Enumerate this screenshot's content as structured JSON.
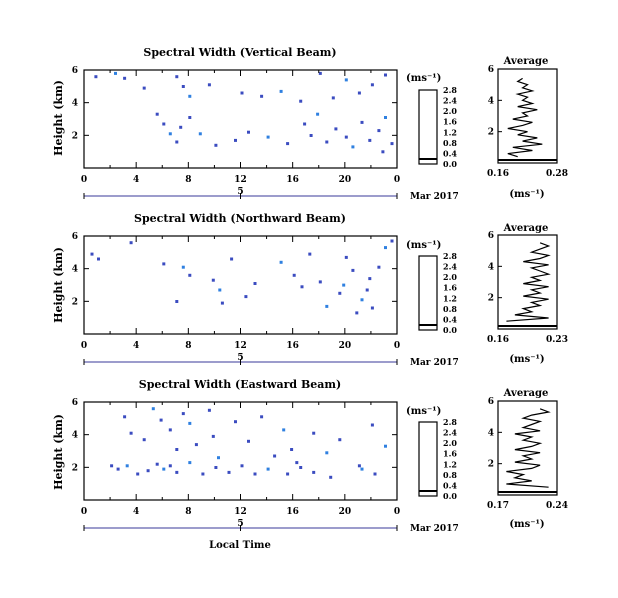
{
  "chart_data": [
    {
      "type": "heatmap",
      "title": "Spectral Width (Vertical Beam)",
      "ylabel": "Height (km)",
      "yticks": [
        "2",
        "4",
        "6"
      ],
      "xticks": [
        "0",
        "4",
        "8",
        "12",
        "16",
        "20",
        "0"
      ],
      "date_mid": "5",
      "date_label": "Mar 2017",
      "colorbar": {
        "unit": "(ms⁻¹)",
        "ticks": [
          "0.0",
          "0.4",
          "0.8",
          "1.2",
          "1.6",
          "2.0",
          "2.4",
          "2.8"
        ]
      },
      "avg": {
        "title": "Average",
        "xticks": [
          "0.16",
          "0.28"
        ],
        "xlabel": "(ms⁻¹)",
        "yticks": [
          "2",
          "4",
          "6"
        ]
      },
      "cells": [
        [
          0.8,
          5.5,
          0.3
        ],
        [
          2.3,
          5.7,
          0.6
        ],
        [
          3.0,
          5.4,
          0.4
        ],
        [
          4.5,
          4.8,
          0.3
        ],
        [
          7.0,
          5.5,
          0.5
        ],
        [
          7.5,
          4.9,
          0.4
        ],
        [
          8.0,
          4.3,
          0.6
        ],
        [
          9.5,
          5.0,
          0.3
        ],
        [
          12.0,
          4.5,
          0.5
        ],
        [
          13.5,
          4.3,
          0.4
        ],
        [
          15.0,
          4.6,
          0.6
        ],
        [
          16.5,
          4.0,
          0.3
        ],
        [
          18.0,
          5.7,
          0.5
        ],
        [
          19.0,
          4.2,
          0.4
        ],
        [
          20.0,
          5.3,
          0.6
        ],
        [
          21.0,
          4.5,
          0.3
        ],
        [
          22.0,
          5.0,
          0.5
        ],
        [
          23.0,
          5.6,
          0.4
        ],
        [
          5.5,
          3.2,
          0.4
        ],
        [
          6.0,
          2.6,
          0.5
        ],
        [
          6.5,
          2.0,
          0.6
        ],
        [
          7.0,
          1.5,
          0.3
        ],
        [
          7.3,
          2.4,
          0.5
        ],
        [
          8.0,
          3.0,
          0.4
        ],
        [
          8.8,
          2.0,
          0.6
        ],
        [
          10.0,
          1.3,
          0.3
        ],
        [
          11.5,
          1.6,
          0.4
        ],
        [
          12.5,
          2.1,
          0.5
        ],
        [
          14.0,
          1.8,
          0.6
        ],
        [
          15.5,
          1.4,
          0.3
        ],
        [
          16.8,
          2.6,
          0.5
        ],
        [
          17.3,
          1.9,
          0.4
        ],
        [
          17.8,
          3.2,
          0.6
        ],
        [
          18.5,
          1.5,
          0.3
        ],
        [
          19.2,
          2.3,
          0.5
        ],
        [
          20.0,
          1.8,
          0.4
        ],
        [
          20.5,
          1.2,
          0.6
        ],
        [
          21.2,
          2.7,
          0.3
        ],
        [
          21.8,
          1.6,
          0.5
        ],
        [
          22.5,
          2.2,
          0.4
        ],
        [
          23.0,
          3.0,
          0.6
        ],
        [
          23.5,
          1.4,
          0.3
        ],
        [
          22.8,
          0.9,
          0.5
        ]
      ],
      "avg_profile": [
        [
          0.2,
          0.4
        ],
        [
          0.18,
          0.6
        ],
        [
          0.23,
          0.8
        ],
        [
          0.19,
          1.0
        ],
        [
          0.25,
          1.2
        ],
        [
          0.21,
          1.4
        ],
        [
          0.24,
          1.6
        ],
        [
          0.2,
          1.8
        ],
        [
          0.22,
          2.0
        ],
        [
          0.18,
          2.2
        ],
        [
          0.21,
          2.4
        ],
        [
          0.23,
          2.6
        ],
        [
          0.19,
          2.8
        ],
        [
          0.22,
          3.0
        ],
        [
          0.21,
          3.2
        ],
        [
          0.24,
          3.4
        ],
        [
          0.2,
          3.6
        ],
        [
          0.23,
          3.8
        ],
        [
          0.21,
          4.0
        ],
        [
          0.22,
          4.2
        ],
        [
          0.2,
          4.4
        ],
        [
          0.23,
          4.6
        ],
        [
          0.21,
          4.8
        ],
        [
          0.22,
          5.0
        ],
        [
          0.2,
          5.2
        ],
        [
          0.21,
          5.4
        ]
      ]
    },
    {
      "type": "heatmap",
      "title": "Spectral Width (Northward Beam)",
      "ylabel": "Height (km)",
      "yticks": [
        "2",
        "4",
        "6"
      ],
      "xticks": [
        "0",
        "4",
        "8",
        "12",
        "16",
        "20",
        "0"
      ],
      "date_mid": "5",
      "date_label": "Mar 2017",
      "colorbar": {
        "unit": "(ms⁻¹)",
        "ticks": [
          "0.0",
          "0.4",
          "0.8",
          "1.2",
          "1.6",
          "2.0",
          "2.4",
          "2.8"
        ]
      },
      "avg": {
        "title": "Average",
        "xticks": [
          "0.16",
          "0.23"
        ],
        "xlabel": "(ms⁻¹)",
        "yticks": [
          "2",
          "4",
          "6"
        ]
      },
      "cells": [
        [
          0.5,
          4.8,
          0.3
        ],
        [
          1.0,
          4.5,
          0.5
        ],
        [
          3.5,
          5.5,
          0.4
        ],
        [
          6.0,
          4.2,
          0.3
        ],
        [
          7.5,
          4.0,
          0.6
        ],
        [
          8.0,
          3.5,
          0.4
        ],
        [
          9.8,
          3.2,
          0.5
        ],
        [
          10.3,
          2.6,
          0.6
        ],
        [
          10.5,
          1.8,
          0.3
        ],
        [
          11.2,
          4.5,
          0.4
        ],
        [
          13.0,
          3.0,
          0.5
        ],
        [
          15.0,
          4.3,
          0.6
        ],
        [
          16.0,
          3.5,
          0.3
        ],
        [
          17.2,
          4.8,
          0.5
        ],
        [
          18.0,
          3.1,
          0.4
        ],
        [
          18.5,
          1.6,
          0.6
        ],
        [
          19.5,
          2.4,
          0.3
        ],
        [
          20.0,
          4.6,
          0.5
        ],
        [
          20.5,
          3.8,
          0.4
        ],
        [
          21.2,
          2.0,
          0.6
        ],
        [
          21.8,
          3.3,
          0.3
        ],
        [
          22.5,
          4.0,
          0.5
        ],
        [
          23.0,
          5.2,
          0.6
        ],
        [
          23.5,
          5.6,
          0.4
        ],
        [
          20.8,
          1.2,
          0.5
        ],
        [
          22.0,
          1.5,
          0.3
        ],
        [
          7.0,
          1.9,
          0.4
        ],
        [
          12.3,
          2.2,
          0.3
        ],
        [
          16.6,
          2.8,
          0.5
        ],
        [
          19.8,
          2.9,
          0.6
        ],
        [
          21.6,
          2.6,
          0.4
        ]
      ],
      "avg_profile": [
        [
          0.17,
          0.5
        ],
        [
          0.22,
          0.7
        ],
        [
          0.18,
          0.9
        ],
        [
          0.2,
          1.1
        ],
        [
          0.19,
          1.3
        ],
        [
          0.21,
          1.5
        ],
        [
          0.2,
          1.7
        ],
        [
          0.22,
          1.9
        ],
        [
          0.19,
          2.1
        ],
        [
          0.21,
          2.3
        ],
        [
          0.2,
          2.5
        ],
        [
          0.22,
          2.7
        ],
        [
          0.19,
          2.9
        ],
        [
          0.21,
          3.1
        ],
        [
          0.2,
          3.3
        ],
        [
          0.22,
          3.5
        ],
        [
          0.21,
          3.7
        ],
        [
          0.2,
          3.9
        ],
        [
          0.22,
          4.1
        ],
        [
          0.19,
          4.3
        ],
        [
          0.21,
          4.5
        ],
        [
          0.22,
          4.7
        ],
        [
          0.2,
          4.9
        ],
        [
          0.21,
          5.1
        ],
        [
          0.22,
          5.3
        ],
        [
          0.21,
          5.5
        ]
      ]
    },
    {
      "type": "heatmap",
      "title": "Spectral Width (Eastward Beam)",
      "ylabel": "Height (km)",
      "yticks": [
        "2",
        "4",
        "6"
      ],
      "xticks": [
        "0",
        "4",
        "8",
        "12",
        "16",
        "20",
        "0"
      ],
      "date_mid": "5",
      "date_label": "Mar 2017",
      "xlabel": "Local Time",
      "colorbar": {
        "unit": "(ms⁻¹)",
        "ticks": [
          "0.0",
          "0.4",
          "0.8",
          "1.2",
          "1.6",
          "2.0",
          "2.4",
          "2.8"
        ]
      },
      "avg": {
        "title": "Average",
        "xticks": [
          "0.17",
          "0.24"
        ],
        "xlabel": "(ms⁻¹)",
        "yticks": [
          "2",
          "4",
          "6"
        ]
      },
      "cells": [
        [
          3.0,
          5.0,
          0.4
        ],
        [
          3.5,
          4.0,
          0.3
        ],
        [
          4.5,
          3.6,
          0.5
        ],
        [
          5.2,
          5.5,
          0.6
        ],
        [
          5.8,
          4.8,
          0.4
        ],
        [
          6.5,
          4.2,
          0.3
        ],
        [
          7.0,
          3.0,
          0.5
        ],
        [
          7.5,
          5.2,
          0.4
        ],
        [
          8.0,
          4.6,
          0.6
        ],
        [
          8.5,
          3.3,
          0.3
        ],
        [
          9.5,
          5.4,
          0.5
        ],
        [
          9.8,
          3.8,
          0.4
        ],
        [
          10.2,
          2.5,
          0.6
        ],
        [
          11.5,
          4.7,
          0.3
        ],
        [
          12.5,
          3.5,
          0.5
        ],
        [
          13.5,
          5.0,
          0.4
        ],
        [
          14.5,
          2.6,
          0.3
        ],
        [
          15.2,
          4.2,
          0.6
        ],
        [
          15.8,
          3.0,
          0.4
        ],
        [
          16.2,
          2.2,
          0.5
        ],
        [
          17.5,
          4.0,
          0.3
        ],
        [
          18.5,
          2.8,
          0.6
        ],
        [
          19.5,
          3.6,
          0.4
        ],
        [
          21.0,
          2.0,
          0.5
        ],
        [
          22.0,
          4.5,
          0.3
        ],
        [
          23.0,
          3.2,
          0.6
        ],
        [
          2.0,
          2.0,
          0.5
        ],
        [
          2.5,
          1.8,
          0.4
        ],
        [
          3.2,
          2.0,
          0.6
        ],
        [
          4.0,
          1.5,
          0.3
        ],
        [
          4.8,
          1.7,
          0.5
        ],
        [
          5.5,
          2.1,
          0.4
        ],
        [
          6.0,
          1.8,
          0.6
        ],
        [
          6.5,
          2.0,
          0.5
        ],
        [
          7.0,
          1.6,
          0.4
        ],
        [
          8.0,
          2.2,
          0.6
        ],
        [
          9.0,
          1.5,
          0.3
        ],
        [
          10.0,
          1.9,
          0.5
        ],
        [
          11.0,
          1.6,
          0.4
        ],
        [
          12.0,
          2.0,
          0.3
        ],
        [
          13.0,
          1.5,
          0.5
        ],
        [
          14.0,
          1.8,
          0.6
        ],
        [
          15.5,
          1.5,
          0.4
        ],
        [
          16.5,
          1.9,
          0.3
        ],
        [
          17.5,
          1.6,
          0.5
        ],
        [
          18.8,
          1.3,
          0.4
        ],
        [
          21.2,
          1.8,
          0.6
        ],
        [
          22.2,
          1.5,
          0.3
        ]
      ],
      "avg_profile": [
        [
          0.23,
          0.5
        ],
        [
          0.18,
          0.7
        ],
        [
          0.21,
          0.9
        ],
        [
          0.19,
          1.1
        ],
        [
          0.2,
          1.3
        ],
        [
          0.18,
          1.5
        ],
        [
          0.21,
          1.7
        ],
        [
          0.22,
          1.9
        ],
        [
          0.19,
          2.1
        ],
        [
          0.21,
          2.3
        ],
        [
          0.2,
          2.5
        ],
        [
          0.22,
          2.7
        ],
        [
          0.19,
          2.9
        ],
        [
          0.21,
          3.1
        ],
        [
          0.22,
          3.3
        ],
        [
          0.2,
          3.5
        ],
        [
          0.21,
          3.7
        ],
        [
          0.19,
          3.9
        ],
        [
          0.22,
          4.1
        ],
        [
          0.2,
          4.3
        ],
        [
          0.21,
          4.5
        ],
        [
          0.22,
          4.7
        ],
        [
          0.2,
          4.9
        ],
        [
          0.21,
          5.1
        ],
        [
          0.23,
          5.3
        ],
        [
          0.22,
          5.5
        ]
      ]
    }
  ]
}
